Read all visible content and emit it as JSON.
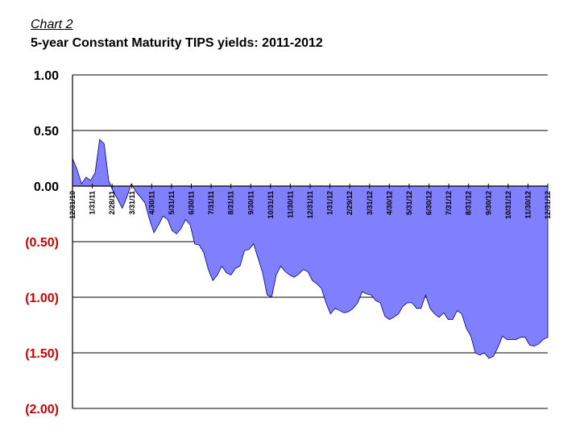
{
  "header": {
    "label": "Chart 2",
    "title": "5-year Constant Maturity TIPS yields: 2011-2012"
  },
  "chart_data": {
    "type": "area",
    "title": "5-year Constant Maturity TIPS yields: 2011-2012",
    "xlabel": "",
    "ylabel": "",
    "ylim": [
      -2.0,
      1.0
    ],
    "yticks": [
      1.0,
      0.5,
      0.0,
      -0.5,
      -1.0,
      -1.5,
      -2.0
    ],
    "ytick_labels": [
      "1.00",
      "0.50",
      "0.00",
      "(0.50)",
      "(1.00)",
      "(1.50)",
      "(2.00)"
    ],
    "xtick_labels": [
      "12/31/10",
      "1/31/11",
      "2/28/11",
      "3/31/11",
      "4/30/11",
      "5/31/11",
      "6/30/11",
      "7/31/11",
      "8/31/11",
      "9/30/11",
      "10/31/11",
      "11/30/11",
      "12/31/11",
      "1/31/12",
      "2/29/12",
      "3/31/12",
      "4/30/12",
      "5/31/12",
      "6/30/12",
      "7/31/12",
      "8/31/12",
      "9/30/12",
      "10/31/12",
      "11/30/12",
      "12/31/12"
    ],
    "grid": true,
    "colors": {
      "fill": "#8080ff",
      "stroke": "#000080",
      "negative_tick": "#cc0000",
      "positive_tick": "#000000"
    },
    "series": [
      {
        "values": [
          0.25,
          0.15,
          0.02,
          0.08,
          0.05,
          0.12,
          0.42,
          0.38,
          0.05,
          -0.05,
          -0.12,
          -0.2,
          -0.1,
          0.02,
          -0.05,
          -0.1,
          -0.15,
          -0.3,
          -0.42,
          -0.35,
          -0.27,
          -0.3,
          -0.4,
          -0.43,
          -0.38,
          -0.3,
          -0.35,
          -0.52,
          -0.53,
          -0.6,
          -0.75,
          -0.85,
          -0.8,
          -0.72,
          -0.78,
          -0.8,
          -0.74,
          -0.72,
          -0.58,
          -0.57,
          -0.52,
          -0.65,
          -0.78,
          -0.98,
          -1.0,
          -0.8,
          -0.72,
          -0.77,
          -0.8,
          -0.82,
          -0.79,
          -0.75,
          -0.77,
          -0.85,
          -0.88,
          -0.92,
          -1.05,
          -1.15,
          -1.1,
          -1.12,
          -1.14,
          -1.13,
          -1.1,
          -1.05,
          -0.95,
          -0.97,
          -0.98,
          -1.03,
          -1.05,
          -1.17,
          -1.2,
          -1.18,
          -1.15,
          -1.08,
          -1.05,
          -1.05,
          -1.1,
          -1.1,
          -0.98,
          -1.1,
          -1.15,
          -1.18,
          -1.14,
          -1.2,
          -1.2,
          -1.12,
          -1.15,
          -1.28,
          -1.35,
          -1.5,
          -1.52,
          -1.5,
          -1.55,
          -1.53,
          -1.45,
          -1.35,
          -1.38,
          -1.38,
          -1.38,
          -1.36,
          -1.36,
          -1.43,
          -1.44,
          -1.42,
          -1.38,
          -1.36
        ]
      }
    ]
  }
}
